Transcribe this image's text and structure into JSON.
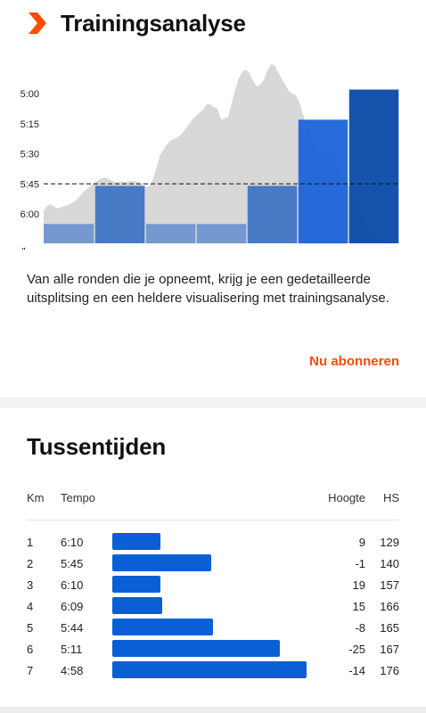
{
  "analysis": {
    "title": "Trainingsanalyse",
    "logo_icon": "strava-chevron-icon",
    "description": "Van alle ronden die je opneemt, krijg je een gedetailleerde uitsplitsing en een heldere visualisering met trainingsanalyse.",
    "subscribe_label": "Nu abonneren",
    "accent_color": "#fc4c02"
  },
  "chart_data": {
    "type": "bar",
    "y_ticks": [
      "5:00",
      "5:15",
      "5:30",
      "5:45",
      "6:00",
      "/km."
    ],
    "ylim_sec_per_km": [
      285,
      375
    ],
    "reference_line_pace": "5:45",
    "bars": [
      {
        "pace_sec_per_km": 365,
        "color": "#6f95cf"
      },
      {
        "pace_sec_per_km": 346,
        "color": "#3f76c4"
      },
      {
        "pace_sec_per_km": 365,
        "color": "#6f95cf"
      },
      {
        "pace_sec_per_km": 365,
        "color": "#6f95cf"
      },
      {
        "pace_sec_per_km": 346,
        "color": "#3f76c4"
      },
      {
        "pace_sec_per_km": 313,
        "color": "#1b64d8"
      },
      {
        "pace_sec_per_km": 298,
        "color": "#0a4aa8"
      }
    ],
    "background_area_color": "#d8d8d8",
    "grid": false
  },
  "splits": {
    "title": "Tussentijden",
    "headers": {
      "km": "Km",
      "tempo": "Tempo",
      "height": "Hoogte",
      "hs": "HS"
    },
    "bar_color": "#0b5fd6",
    "rows": [
      {
        "km": "1",
        "pace": "6:10",
        "pace_sec": 370,
        "elevation": "9",
        "hr": "129"
      },
      {
        "km": "2",
        "pace": "5:45",
        "pace_sec": 345,
        "elevation": "-1",
        "hr": "140"
      },
      {
        "km": "3",
        "pace": "6:10",
        "pace_sec": 370,
        "elevation": "19",
        "hr": "157"
      },
      {
        "km": "4",
        "pace": "6:09",
        "pace_sec": 369,
        "elevation": "15",
        "hr": "166"
      },
      {
        "km": "5",
        "pace": "5:44",
        "pace_sec": 344,
        "elevation": "-8",
        "hr": "165"
      },
      {
        "km": "6",
        "pace": "5:11",
        "pace_sec": 311,
        "elevation": "-25",
        "hr": "167"
      },
      {
        "km": "7",
        "pace": "4:58",
        "pace_sec": 298,
        "elevation": "-14",
        "hr": "176"
      }
    ]
  }
}
